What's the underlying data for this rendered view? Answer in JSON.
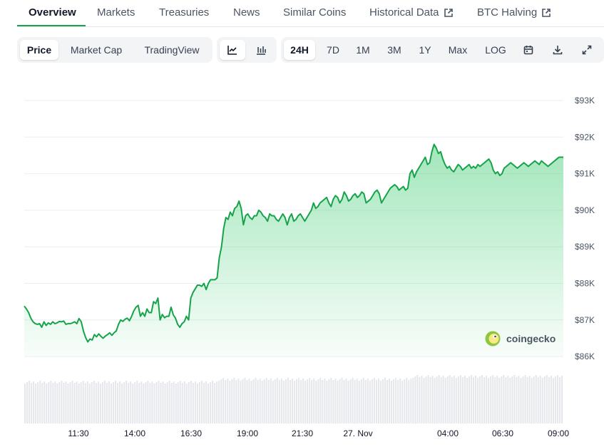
{
  "tabs": [
    {
      "label": "Overview",
      "active": true,
      "external": false
    },
    {
      "label": "Markets",
      "active": false,
      "external": false
    },
    {
      "label": "Treasuries",
      "active": false,
      "external": false
    },
    {
      "label": "News",
      "active": false,
      "external": false
    },
    {
      "label": "Similar Coins",
      "active": false,
      "external": false
    },
    {
      "label": "Historical Data",
      "active": false,
      "external": true
    },
    {
      "label": "BTC Halving",
      "active": false,
      "external": true
    }
  ],
  "chart_mode": {
    "options": [
      "Price",
      "Market Cap",
      "TradingView"
    ],
    "selected": "Price"
  },
  "chart_style": {
    "options": [
      "line-chart-icon",
      "candlestick-icon"
    ],
    "selected": "line-chart-icon"
  },
  "range": {
    "options": [
      "24H",
      "7D",
      "1M",
      "3M",
      "1Y",
      "Max",
      "LOG"
    ],
    "selected": "24H"
  },
  "tools": [
    "calendar-icon",
    "download-icon",
    "fullscreen-icon"
  ],
  "colors": {
    "accent": "#16a34a",
    "line": "#16a34a",
    "fill": "#22c55e",
    "volume": "#e5e7eb"
  },
  "watermark": "coingecko",
  "chart_data": {
    "type": "area",
    "title": "",
    "xlabel": "",
    "ylabel": "",
    "ylim": [
      85900,
      93000
    ],
    "y_ticks": [
      93000,
      92000,
      91000,
      90000,
      89000,
      88000,
      87000,
      86000
    ],
    "y_tick_labels": [
      "$93K",
      "$92K",
      "$91K",
      "$90K",
      "$89K",
      "$88K",
      "$87K",
      "$86K"
    ],
    "x_tick_labels": [
      "11:30",
      "14:00",
      "16:30",
      "19:00",
      "21:30",
      "27. Nov",
      "04:00",
      "06:30",
      "09:00"
    ],
    "grid": true,
    "legend": "none",
    "series": [
      {
        "values": [
          87380,
          87300,
          87200,
          87050,
          86950,
          86900,
          86880,
          86900,
          86800,
          86950,
          86850,
          86920,
          86880,
          86950,
          86900,
          86920,
          86960,
          86950,
          86970,
          86880,
          86900,
          86900,
          86920,
          86950,
          86900,
          87040,
          86950,
          86700,
          86520,
          86400,
          86480,
          86450,
          86600,
          86540,
          86620,
          86550,
          86500,
          86560,
          86600,
          86650,
          86580,
          86650,
          86700,
          86880,
          87000,
          86960,
          87020,
          87050,
          86980,
          87100,
          87250,
          87350,
          87400,
          87100,
          87200,
          87100,
          87300,
          87200,
          87200,
          87500,
          87450,
          87600,
          87000,
          87150,
          87060,
          87100,
          87100,
          87350,
          87140,
          87050,
          86880,
          86800,
          86900,
          86950,
          87100,
          87000,
          87600,
          87750,
          87850,
          87950,
          87950,
          87920,
          88000,
          87830,
          88000,
          88100,
          88100,
          88100,
          88150,
          88700,
          89000,
          89500,
          89800,
          89750,
          89950,
          89850,
          90050,
          90100,
          90250,
          90050,
          89600,
          89850,
          89900,
          89800,
          89750,
          89850,
          89850,
          90000,
          89950,
          89850,
          89800,
          89700,
          89900,
          89850,
          89850,
          89750,
          89700,
          89800,
          89900,
          89800,
          89600,
          89800,
          89900,
          89700,
          89750,
          89850,
          89900,
          89800,
          89700,
          89800,
          89900,
          90000,
          90200,
          90050,
          90100,
          90200,
          90250,
          90300,
          90350,
          90200,
          90100,
          90300,
          90400,
          90350,
          90200,
          90300,
          90500,
          90400,
          90250,
          90300,
          90400,
          90450,
          90350,
          90400,
          90500,
          90450,
          90200,
          90250,
          90300,
          90400,
          90500,
          90550,
          90450,
          90200,
          90300,
          90400,
          90500,
          90600,
          90650,
          90700,
          90650,
          90550,
          90600,
          90650,
          90550,
          90600,
          91000,
          91100,
          90900,
          91050,
          91150,
          91250,
          91350,
          91450,
          91250,
          91300,
          91600,
          91800,
          91700,
          91550,
          91600,
          91400,
          91250,
          91150,
          91200,
          91100,
          91050,
          91150,
          91250,
          91200,
          91100,
          91150,
          91200,
          91250,
          91150,
          91200,
          91150,
          91250,
          91200,
          91250,
          91300,
          91350,
          91400,
          91300,
          91100,
          91000,
          91050,
          90950,
          91000,
          91150,
          91200,
          91250,
          91300,
          91250,
          91200,
          91150,
          91200,
          91250,
          91300,
          91250,
          91200,
          91250,
          91300,
          91350,
          91300,
          91250,
          91350,
          91300,
          91250,
          91200,
          91250,
          91300,
          91350,
          91400,
          91450,
          91450,
          91450
        ]
      }
    ]
  }
}
